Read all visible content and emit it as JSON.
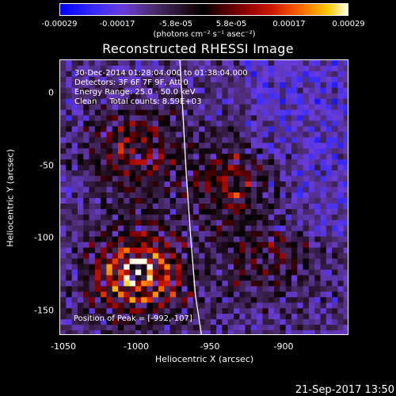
{
  "colorbar": {
    "labels": [
      "-0.00029",
      "-0.00017",
      "-5.8e-05",
      "5.8e-05",
      "0.00017",
      "0.00029"
    ],
    "units": "(photons cm⁻² s⁻¹ asec⁻²)"
  },
  "title": "Reconstructed RHESSI Image",
  "annotations": {
    "time_range": "30-Dec-2014 01:28:04.000 to 01:38:04.000",
    "detectors": "Detectors: 3F 6F 7F 9F, Att 0",
    "energy": "Energy Range: 25.0 - 50.0 keV",
    "clean": "Clean     Total counts: 8.59E+03",
    "peak": "Position of Peak = [-992,-107]"
  },
  "axes": {
    "xlabel": "Heliocentric X (arcsec)",
    "ylabel": "Heliocentric Y (arcsec)",
    "xticks": [
      "-1050",
      "-1000",
      "-950",
      "-900"
    ],
    "yticks": [
      "0",
      "-50",
      "-100",
      "-150"
    ]
  },
  "footer": {
    "date": "21-Sep-2017 13:50"
  },
  "chart_data": {
    "type": "heatmap",
    "title": "Reconstructed RHESSI Image",
    "xlabel": "Heliocentric X (arcsec)",
    "ylabel": "Heliocentric Y (arcsec)",
    "xlim": [
      -1053,
      -867
    ],
    "ylim": [
      -168,
      22
    ],
    "color_range": [
      -0.00029,
      0.00029
    ],
    "colorbar_ticks": [
      -0.00029,
      -0.00017,
      -5.8e-05,
      5.8e-05,
      0.00017,
      0.00029
    ],
    "peak_position": [
      -992,
      -107
    ],
    "sources": [
      {
        "x": -1003,
        "y": -125,
        "intensity": 0.00029
      },
      {
        "x": -1005,
        "y": -40,
        "intensity": 0.00017
      },
      {
        "x": -940,
        "y": -62,
        "intensity": 0.00017
      },
      {
        "x": -920,
        "y": -115,
        "intensity": 0.00012
      }
    ],
    "limb_curve": {
      "x": [
        -976,
        -974,
        -972,
        -969,
        -966,
        -962
      ],
      "y": [
        22,
        -15,
        -55,
        -100,
        -140,
        -168
      ]
    },
    "colors": {
      "limb": "#ffffff",
      "frame": "#ffffff",
      "background": "#000000"
    }
  }
}
